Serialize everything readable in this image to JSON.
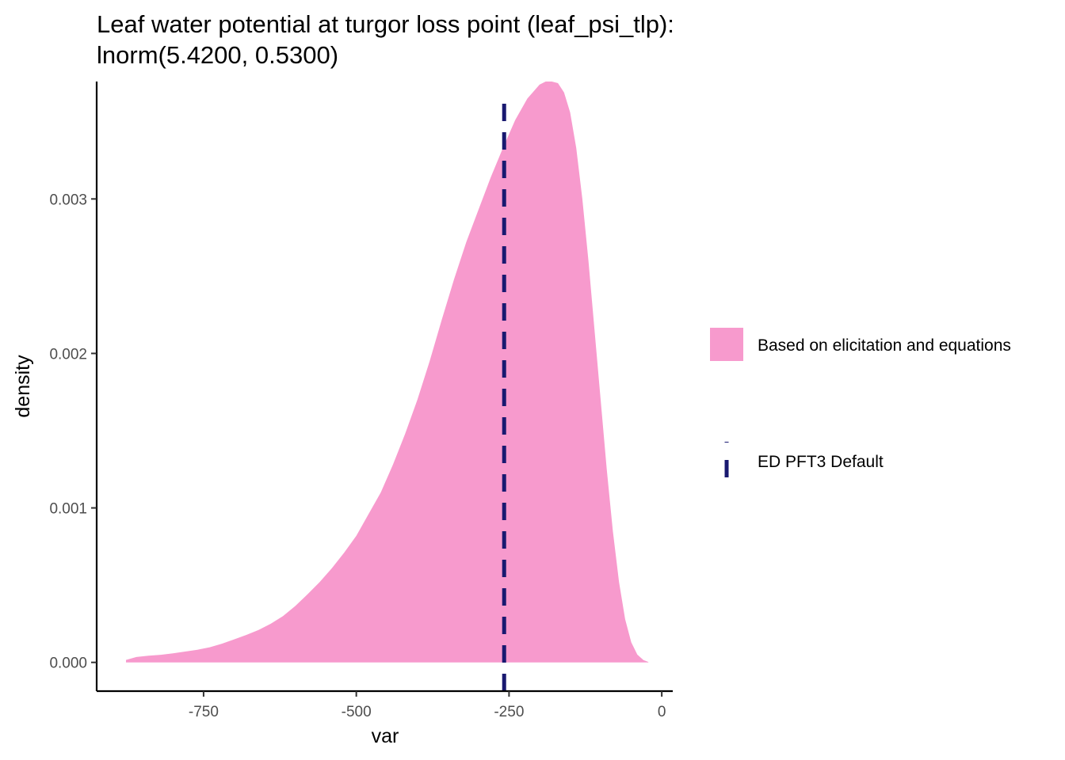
{
  "chart_data": {
    "type": "area",
    "title_line1": "Leaf water potential at turgor loss point (leaf_psi_tlp):",
    "title_line2": "lnorm(5.4200, 0.5300)",
    "xlabel": "var",
    "ylabel": "density",
    "xlim": [
      -925,
      18
    ],
    "ylim": [
      -0.000186,
      0.00376
    ],
    "x_ticks": [
      -750,
      -500,
      -250,
      0
    ],
    "x_tick_labels": [
      "-750",
      "-500",
      "-250",
      "0"
    ],
    "y_ticks": [
      0.0,
      0.001,
      0.002,
      0.003
    ],
    "y_tick_labels": [
      "0.000",
      "0.001",
      "0.002",
      "0.003"
    ],
    "grid": false,
    "legend_position": "right",
    "series": [
      {
        "name": "Based on elicitation and equations",
        "kind": "density-area",
        "color": "#f79acd",
        "x": [
          -877,
          -860,
          -840,
          -820,
          -800,
          -780,
          -760,
          -740,
          -720,
          -700,
          -680,
          -660,
          -640,
          -620,
          -600,
          -580,
          -560,
          -540,
          -520,
          -500,
          -480,
          -460,
          -440,
          -420,
          -400,
          -380,
          -360,
          -340,
          -320,
          -300,
          -280,
          -260,
          -240,
          -220,
          -200,
          -190,
          -180,
          -170,
          -160,
          -150,
          -140,
          -130,
          -120,
          -110,
          -100,
          -90,
          -80,
          -70,
          -60,
          -50,
          -40,
          -30,
          -22
        ],
        "y": [
          1.6e-05,
          3.5e-05,
          4.3e-05,
          4.9e-05,
          5.9e-05,
          7e-05,
          8.2e-05,
          9.8e-05,
          0.000121,
          0.000149,
          0.000178,
          0.00021,
          0.00025,
          0.0003,
          0.000365,
          0.00044,
          0.00052,
          0.00061,
          0.00071,
          0.00082,
          0.00096,
          0.0011,
          0.00128,
          0.00148,
          0.0017,
          0.00195,
          0.00222,
          0.00248,
          0.00272,
          0.00293,
          0.00314,
          0.00333,
          0.00351,
          0.00365,
          0.00374,
          0.00376,
          0.00376,
          0.00375,
          0.00369,
          0.00356,
          0.00333,
          0.003,
          0.0026,
          0.00215,
          0.0017,
          0.00125,
          0.00085,
          0.00052,
          0.00028,
          0.00013,
          5e-05,
          1.5e-05,
          3e-06
        ]
      },
      {
        "name": "ED PFT3 Default",
        "kind": "vline-dashed",
        "color": "#191970",
        "x_value": -258
      }
    ]
  }
}
